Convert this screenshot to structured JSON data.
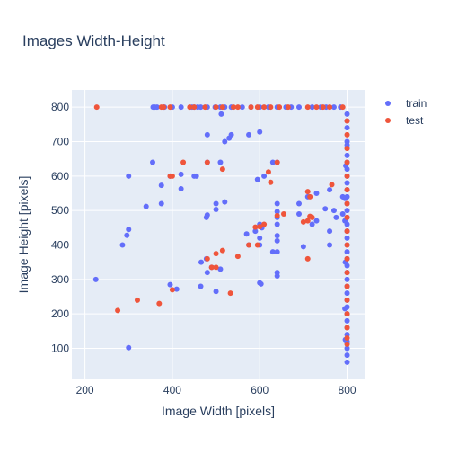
{
  "chart_data": {
    "type": "scatter",
    "title": "Images Width-Height",
    "xlabel": "Image Width [pixels]",
    "ylabel": "Image Height [pixels]",
    "xlim": [
      170,
      840
    ],
    "ylim": [
      10,
      850
    ],
    "xticks": [
      200,
      400,
      600,
      800
    ],
    "yticks": [
      100,
      200,
      300,
      400,
      500,
      600,
      700,
      800
    ],
    "grid": true,
    "legend_position": "top-right",
    "colors": {
      "train": "#636efa",
      "test": "#ef553b",
      "plot_bg": "#e5ecf6",
      "grid": "#ffffff",
      "text": "#2a3f5f"
    },
    "series": [
      {
        "name": "train",
        "color": "#636efa",
        "points": [
          [
            356,
            800
          ],
          [
            360,
            800
          ],
          [
            365,
            800
          ],
          [
            380,
            800
          ],
          [
            382,
            800
          ],
          [
            400,
            800
          ],
          [
            420,
            800
          ],
          [
            445,
            800
          ],
          [
            450,
            800
          ],
          [
            458,
            800
          ],
          [
            465,
            800
          ],
          [
            480,
            800
          ],
          [
            498,
            800
          ],
          [
            510,
            800
          ],
          [
            520,
            800
          ],
          [
            535,
            800
          ],
          [
            560,
            800
          ],
          [
            580,
            800
          ],
          [
            600,
            800
          ],
          [
            620,
            800
          ],
          [
            640,
            800
          ],
          [
            660,
            800
          ],
          [
            672,
            800
          ],
          [
            690,
            800
          ],
          [
            720,
            800
          ],
          [
            740,
            800
          ],
          [
            752,
            800
          ],
          [
            770,
            800
          ],
          [
            785,
            800
          ],
          [
            512,
            780
          ],
          [
            600,
            728
          ],
          [
            480,
            720
          ],
          [
            575,
            720
          ],
          [
            535,
            720
          ],
          [
            530,
            710
          ],
          [
            520,
            700
          ],
          [
            510,
            640
          ],
          [
            355,
            640
          ],
          [
            480,
            640
          ],
          [
            640,
            640
          ],
          [
            630,
            640
          ],
          [
            300,
            600
          ],
          [
            395,
            600
          ],
          [
            420,
            605
          ],
          [
            450,
            600
          ],
          [
            455,
            600
          ],
          [
            610,
            600
          ],
          [
            595,
            590
          ],
          [
            375,
            573
          ],
          [
            420,
            563
          ],
          [
            500,
            503
          ],
          [
            520,
            525
          ],
          [
            500,
            520
          ],
          [
            640,
            520
          ],
          [
            640,
            497
          ],
          [
            340,
            512
          ],
          [
            375,
            520
          ],
          [
            478,
            480
          ],
          [
            480,
            487
          ],
          [
            600,
            460
          ],
          [
            605,
            450
          ],
          [
            640,
            480
          ],
          [
            640,
            460
          ],
          [
            600,
            400
          ],
          [
            640,
            427
          ],
          [
            590,
            440
          ],
          [
            570,
            432
          ],
          [
            690,
            520
          ],
          [
            690,
            490
          ],
          [
            710,
            540
          ],
          [
            730,
            550
          ],
          [
            750,
            505
          ],
          [
            760,
            560
          ],
          [
            770,
            500
          ],
          [
            775,
            480
          ],
          [
            790,
            540
          ],
          [
            760,
            440
          ],
          [
            760,
            400
          ],
          [
            720,
            460
          ],
          [
            700,
            395
          ],
          [
            730,
            470
          ],
          [
            790,
            490
          ],
          [
            600,
            420
          ],
          [
            640,
            412
          ],
          [
            575,
            400
          ],
          [
            640,
            380
          ],
          [
            630,
            380
          ],
          [
            300,
            445
          ],
          [
            296,
            428
          ],
          [
            286,
            400
          ],
          [
            466,
            350
          ],
          [
            478,
            360
          ],
          [
            490,
            335
          ],
          [
            640,
            320
          ],
          [
            640,
            310
          ],
          [
            600,
            290
          ],
          [
            603,
            287
          ],
          [
            510,
            330
          ],
          [
            500,
            265
          ],
          [
            480,
            320
          ],
          [
            465,
            280
          ],
          [
            395,
            285
          ],
          [
            410,
            272
          ],
          [
            225,
            300
          ],
          [
            300,
            102
          ],
          [
            800,
            780
          ],
          [
            800,
            760
          ],
          [
            800,
            740
          ],
          [
            800,
            700
          ],
          [
            800,
            690
          ],
          [
            800,
            660
          ],
          [
            800,
            640
          ],
          [
            800,
            620
          ],
          [
            800,
            600
          ],
          [
            800,
            580
          ],
          [
            800,
            560
          ],
          [
            800,
            540
          ],
          [
            800,
            520
          ],
          [
            800,
            500
          ],
          [
            800,
            480
          ],
          [
            800,
            460
          ],
          [
            800,
            440
          ],
          [
            800,
            420
          ],
          [
            800,
            400
          ],
          [
            800,
            380
          ],
          [
            800,
            360
          ],
          [
            800,
            340
          ],
          [
            800,
            320
          ],
          [
            800,
            300
          ],
          [
            800,
            280
          ],
          [
            800,
            260
          ],
          [
            800,
            240
          ],
          [
            800,
            220
          ],
          [
            800,
            200
          ],
          [
            800,
            180
          ],
          [
            800,
            160
          ],
          [
            800,
            140
          ],
          [
            800,
            120
          ],
          [
            800,
            100
          ],
          [
            800,
            80
          ],
          [
            800,
            60
          ],
          [
            797,
            630
          ],
          [
            795,
            535
          ],
          [
            795,
            470
          ],
          [
            796,
            350
          ],
          [
            795,
            215
          ],
          [
            796,
            125
          ]
        ]
      },
      {
        "name": "test",
        "color": "#ef553b",
        "points": [
          [
            227,
            800
          ],
          [
            375,
            800
          ],
          [
            380,
            800
          ],
          [
            395,
            800
          ],
          [
            440,
            800
          ],
          [
            450,
            800
          ],
          [
            475,
            800
          ],
          [
            500,
            800
          ],
          [
            515,
            800
          ],
          [
            540,
            800
          ],
          [
            550,
            800
          ],
          [
            580,
            800
          ],
          [
            595,
            800
          ],
          [
            610,
            800
          ],
          [
            625,
            800
          ],
          [
            645,
            800
          ],
          [
            665,
            800
          ],
          [
            710,
            800
          ],
          [
            730,
            800
          ],
          [
            745,
            800
          ],
          [
            760,
            800
          ],
          [
            790,
            800
          ],
          [
            425,
            640
          ],
          [
            480,
            640
          ],
          [
            640,
            640
          ],
          [
            515,
            620
          ],
          [
            620,
            612
          ],
          [
            400,
            600
          ],
          [
            395,
            600
          ],
          [
            625,
            582
          ],
          [
            765,
            575
          ],
          [
            710,
            555
          ],
          [
            715,
            540
          ],
          [
            640,
            485
          ],
          [
            655,
            490
          ],
          [
            720,
            480
          ],
          [
            710,
            470
          ],
          [
            700,
            467
          ],
          [
            715,
            483
          ],
          [
            590,
            452
          ],
          [
            600,
            453
          ],
          [
            595,
            400
          ],
          [
            610,
            460
          ],
          [
            710,
            360
          ],
          [
            575,
            400
          ],
          [
            515,
            384
          ],
          [
            500,
            375
          ],
          [
            490,
            335
          ],
          [
            500,
            335
          ],
          [
            480,
            360
          ],
          [
            550,
            367
          ],
          [
            533,
            260
          ],
          [
            400,
            270
          ],
          [
            370,
            230
          ],
          [
            320,
            240
          ],
          [
            275,
            210
          ],
          [
            800,
            760
          ],
          [
            800,
            720
          ],
          [
            800,
            680
          ],
          [
            800,
            640
          ],
          [
            800,
            600
          ],
          [
            800,
            560
          ],
          [
            800,
            520
          ],
          [
            800,
            480
          ],
          [
            800,
            440
          ],
          [
            800,
            400
          ],
          [
            800,
            360
          ],
          [
            800,
            320
          ],
          [
            800,
            280
          ],
          [
            800,
            240
          ],
          [
            800,
            200
          ],
          [
            800,
            160
          ],
          [
            800,
            130
          ],
          [
            800,
            112
          ]
        ]
      }
    ]
  }
}
